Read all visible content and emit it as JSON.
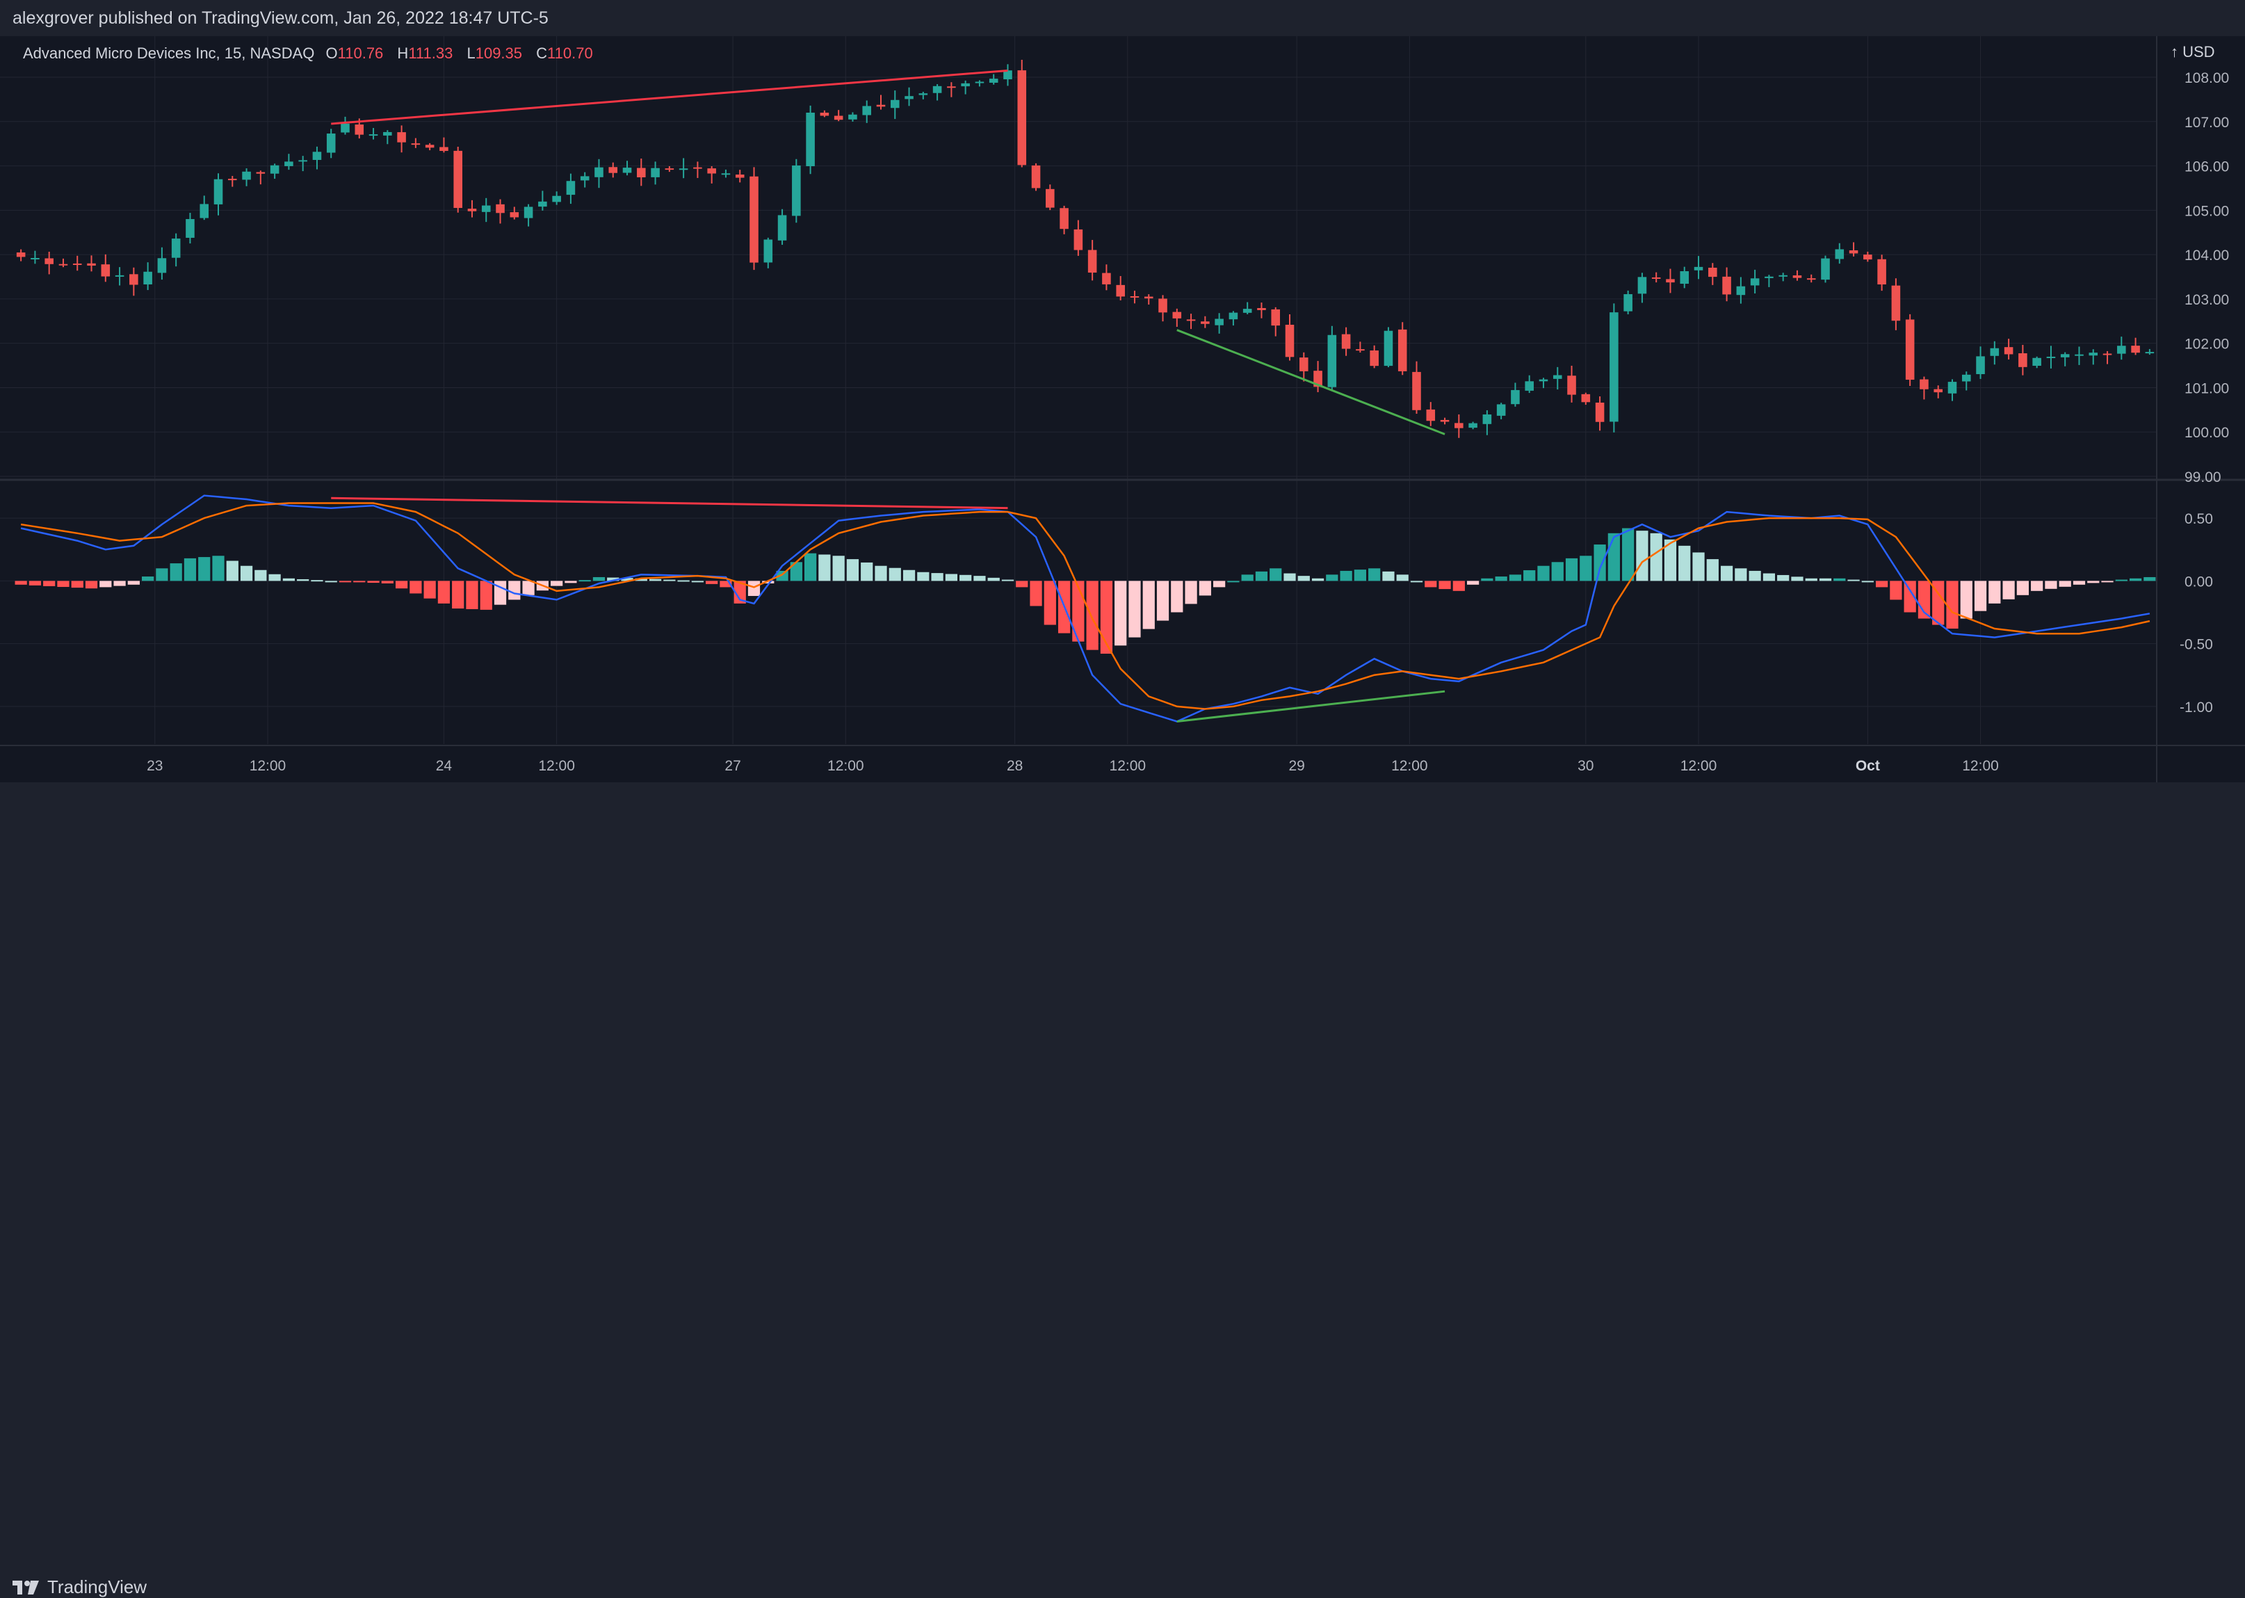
{
  "header": {
    "publisher": "alexgrover published on TradingView.com, Jan 26, 2022 18:47 UTC-5"
  },
  "symbol": {
    "name": "Advanced Micro Devices Inc, 15, NASDAQ",
    "open_label": "O",
    "open": "110.76",
    "high_label": "H",
    "high": "111.33",
    "low_label": "L",
    "low": "109.35",
    "close_label": "C",
    "close": "110.70",
    "currency": "USD"
  },
  "footer": {
    "brand": "TradingView"
  },
  "colors": {
    "background": "#131722",
    "grid": "#232632",
    "up": "#26a69a",
    "down": "#ef5350",
    "hist_up_strong": "#26a69a",
    "hist_up_weak": "#b2dfdb",
    "hist_down_strong": "#ff5252",
    "hist_down_weak": "#ffcdd2",
    "macd_line": "#2962ff",
    "signal_line": "#ff6d00",
    "bear_divergence": "#f23645",
    "bull_divergence": "#4caf50"
  },
  "chart_data": [
    {
      "type": "candlestick",
      "title": "Advanced Micro Devices Inc, 15, NASDAQ",
      "ylim": [
        99.0,
        108.8
      ],
      "y_ticks": [
        "108.00",
        "107.00",
        "106.00",
        "105.00",
        "104.00",
        "103.00",
        "102.00",
        "101.00",
        "100.00",
        "99.00"
      ],
      "x_ticks": [
        "23",
        "12:00",
        "24",
        "12:00",
        "27",
        "12:00",
        "28",
        "12:00",
        "29",
        "12:00",
        "30",
        "12:00",
        "Oct",
        "12:00"
      ],
      "x_tick_positions": [
        9.5,
        17.5,
        30,
        38,
        50.5,
        58.5,
        70.5,
        78.5,
        90.5,
        98.5,
        111,
        119,
        131,
        139
      ],
      "total_bars": 152,
      "key_points": [
        {
          "bar": 0,
          "close": 103.95
        },
        {
          "bar": 5,
          "close": 103.75
        },
        {
          "bar": 8,
          "close": 103.3
        },
        {
          "bar": 11,
          "close": 104.3
        },
        {
          "bar": 14,
          "close": 105.7
        },
        {
          "bar": 17,
          "close": 105.9
        },
        {
          "bar": 20,
          "close": 106.2
        },
        {
          "bar": 23,
          "close": 106.85
        },
        {
          "bar": 27,
          "close": 106.6
        },
        {
          "bar": 30,
          "close": 106.3
        },
        {
          "bar": 31,
          "close": 105.1
        },
        {
          "bar": 35,
          "close": 104.9
        },
        {
          "bar": 38,
          "close": 105.4
        },
        {
          "bar": 41,
          "close": 106.0
        },
        {
          "bar": 44,
          "close": 105.8
        },
        {
          "bar": 47,
          "close": 106.0
        },
        {
          "bar": 51,
          "close": 105.7
        },
        {
          "bar": 52,
          "close": 103.9
        },
        {
          "bar": 54,
          "close": 104.9
        },
        {
          "bar": 56,
          "close": 107.3
        },
        {
          "bar": 58,
          "close": 107.0
        },
        {
          "bar": 62,
          "close": 107.5
        },
        {
          "bar": 66,
          "close": 107.8
        },
        {
          "bar": 70,
          "close": 108.1
        },
        {
          "bar": 71,
          "close": 106.1
        },
        {
          "bar": 73,
          "close": 105.0
        },
        {
          "bar": 76,
          "close": 103.5
        },
        {
          "bar": 78,
          "close": 103.0
        },
        {
          "bar": 80,
          "close": 103.0
        },
        {
          "bar": 82,
          "close": 102.6
        },
        {
          "bar": 84,
          "close": 102.5
        },
        {
          "bar": 88,
          "close": 102.8
        },
        {
          "bar": 90,
          "close": 101.8
        },
        {
          "bar": 92,
          "close": 101.0
        },
        {
          "bar": 93,
          "close": 102.2
        },
        {
          "bar": 96,
          "close": 101.5
        },
        {
          "bar": 97,
          "close": 102.2
        },
        {
          "bar": 99,
          "close": 100.5
        },
        {
          "bar": 102,
          "close": 100.0
        },
        {
          "bar": 104,
          "close": 100.5
        },
        {
          "bar": 107,
          "close": 101.1
        },
        {
          "bar": 109,
          "close": 101.2
        },
        {
          "bar": 112,
          "close": 100.3
        },
        {
          "bar": 113,
          "close": 102.8
        },
        {
          "bar": 115,
          "close": 103.6
        },
        {
          "bar": 117,
          "close": 103.3
        },
        {
          "bar": 119,
          "close": 103.8
        },
        {
          "bar": 121,
          "close": 103.2
        },
        {
          "bar": 124,
          "close": 103.6
        },
        {
          "bar": 127,
          "close": 103.5
        },
        {
          "bar": 129,
          "close": 104.2
        },
        {
          "bar": 131,
          "close": 104.0
        },
        {
          "bar": 133,
          "close": 102.6
        },
        {
          "bar": 134,
          "close": 101.2
        },
        {
          "bar": 136,
          "close": 100.9
        },
        {
          "bar": 138,
          "close": 101.4
        },
        {
          "bar": 140,
          "close": 101.9
        },
        {
          "bar": 142,
          "close": 101.5
        },
        {
          "bar": 146,
          "close": 101.8
        },
        {
          "bar": 151,
          "close": 101.9
        }
      ],
      "bear_divergence": {
        "from": {
          "bar": 22,
          "price": 106.95
        },
        "to": {
          "bar": 70,
          "price": 108.15
        }
      },
      "bull_divergence": {
        "from": {
          "bar": 82,
          "price": 102.3
        },
        "to": {
          "bar": 101,
          "price": 99.95
        }
      }
    },
    {
      "type": "macd",
      "ylim": [
        -1.3,
        0.75
      ],
      "y_ticks": [
        "0.50",
        "0.00",
        "-0.50",
        "-1.00"
      ],
      "y_tick_values": [
        0.5,
        0.0,
        -0.5,
        -1.0
      ],
      "series": [
        {
          "name": "MACD",
          "color": "#2962ff",
          "points": [
            [
              0,
              0.42
            ],
            [
              4,
              0.32
            ],
            [
              6,
              0.25
            ],
            [
              8,
              0.28
            ],
            [
              10,
              0.45
            ],
            [
              13,
              0.68
            ],
            [
              16,
              0.65
            ],
            [
              19,
              0.6
            ],
            [
              22,
              0.58
            ],
            [
              25,
              0.6
            ],
            [
              28,
              0.48
            ],
            [
              31,
              0.1
            ],
            [
              35,
              -0.1
            ],
            [
              38,
              -0.15
            ],
            [
              41,
              -0.02
            ],
            [
              44,
              0.05
            ],
            [
              48,
              0.04
            ],
            [
              50,
              0.03
            ],
            [
              51,
              -0.15
            ],
            [
              52,
              -0.18
            ],
            [
              54,
              0.12
            ],
            [
              56,
              0.3
            ],
            [
              58,
              0.48
            ],
            [
              61,
              0.52
            ],
            [
              64,
              0.55
            ],
            [
              68,
              0.57
            ],
            [
              70,
              0.55
            ],
            [
              72,
              0.35
            ],
            [
              74,
              -0.2
            ],
            [
              76,
              -0.75
            ],
            [
              78,
              -0.98
            ],
            [
              80,
              -1.05
            ],
            [
              82,
              -1.12
            ],
            [
              84,
              -1.02
            ],
            [
              86,
              -0.98
            ],
            [
              88,
              -0.92
            ],
            [
              90,
              -0.85
            ],
            [
              92,
              -0.9
            ],
            [
              94,
              -0.75
            ],
            [
              96,
              -0.62
            ],
            [
              98,
              -0.72
            ],
            [
              100,
              -0.78
            ],
            [
              102,
              -0.8
            ],
            [
              105,
              -0.65
            ],
            [
              108,
              -0.55
            ],
            [
              110,
              -0.4
            ],
            [
              111,
              -0.35
            ],
            [
              112,
              0.1
            ],
            [
              113,
              0.35
            ],
            [
              115,
              0.45
            ],
            [
              117,
              0.35
            ],
            [
              119,
              0.4
            ],
            [
              121,
              0.55
            ],
            [
              124,
              0.52
            ],
            [
              127,
              0.5
            ],
            [
              129,
              0.52
            ],
            [
              131,
              0.45
            ],
            [
              133,
              0.1
            ],
            [
              135,
              -0.25
            ],
            [
              137,
              -0.42
            ],
            [
              140,
              -0.45
            ],
            [
              143,
              -0.4
            ],
            [
              146,
              -0.35
            ],
            [
              149,
              -0.3
            ],
            [
              151,
              -0.26
            ]
          ]
        },
        {
          "name": "Signal",
          "color": "#ff6d00",
          "points": [
            [
              0,
              0.45
            ],
            [
              4,
              0.38
            ],
            [
              7,
              0.32
            ],
            [
              10,
              0.35
            ],
            [
              13,
              0.5
            ],
            [
              16,
              0.6
            ],
            [
              19,
              0.62
            ],
            [
              22,
              0.62
            ],
            [
              25,
              0.62
            ],
            [
              28,
              0.55
            ],
            [
              31,
              0.38
            ],
            [
              35,
              0.05
            ],
            [
              38,
              -0.08
            ],
            [
              41,
              -0.05
            ],
            [
              44,
              0.02
            ],
            [
              48,
              0.04
            ],
            [
              50,
              0.02
            ],
            [
              52,
              -0.05
            ],
            [
              54,
              0.05
            ],
            [
              56,
              0.25
            ],
            [
              58,
              0.38
            ],
            [
              61,
              0.47
            ],
            [
              64,
              0.52
            ],
            [
              68,
              0.55
            ],
            [
              70,
              0.55
            ],
            [
              72,
              0.5
            ],
            [
              74,
              0.2
            ],
            [
              76,
              -0.3
            ],
            [
              78,
              -0.7
            ],
            [
              80,
              -0.92
            ],
            [
              82,
              -1.0
            ],
            [
              84,
              -1.02
            ],
            [
              86,
              -1.0
            ],
            [
              88,
              -0.95
            ],
            [
              90,
              -0.92
            ],
            [
              92,
              -0.88
            ],
            [
              94,
              -0.82
            ],
            [
              96,
              -0.75
            ],
            [
              98,
              -0.72
            ],
            [
              100,
              -0.75
            ],
            [
              102,
              -0.78
            ],
            [
              105,
              -0.72
            ],
            [
              108,
              -0.65
            ],
            [
              110,
              -0.55
            ],
            [
              112,
              -0.45
            ],
            [
              113,
              -0.2
            ],
            [
              115,
              0.15
            ],
            [
              117,
              0.3
            ],
            [
              119,
              0.42
            ],
            [
              121,
              0.47
            ],
            [
              124,
              0.5
            ],
            [
              127,
              0.5
            ],
            [
              129,
              0.5
            ],
            [
              131,
              0.49
            ],
            [
              133,
              0.35
            ],
            [
              135,
              0.05
            ],
            [
              137,
              -0.25
            ],
            [
              140,
              -0.38
            ],
            [
              143,
              -0.42
            ],
            [
              146,
              -0.42
            ],
            [
              149,
              -0.37
            ],
            [
              151,
              -0.32
            ]
          ]
        }
      ],
      "histogram_keypoints": [
        [
          0,
          -0.03
        ],
        [
          5,
          -0.06
        ],
        [
          8,
          -0.03
        ],
        [
          10,
          0.1
        ],
        [
          12,
          0.18
        ],
        [
          14,
          0.2
        ],
        [
          16,
          0.12
        ],
        [
          19,
          0.02
        ],
        [
          22,
          0.0
        ],
        [
          26,
          -0.02
        ],
        [
          28,
          -0.1
        ],
        [
          31,
          -0.22
        ],
        [
          33,
          -0.23
        ],
        [
          35,
          -0.15
        ],
        [
          38,
          -0.04
        ],
        [
          41,
          0.03
        ],
        [
          44,
          0.02
        ],
        [
          48,
          0.0
        ],
        [
          50,
          -0.05
        ],
        [
          51,
          -0.18
        ],
        [
          52,
          -0.12
        ],
        [
          54,
          0.08
        ],
        [
          56,
          0.22
        ],
        [
          58,
          0.2
        ],
        [
          61,
          0.12
        ],
        [
          64,
          0.07
        ],
        [
          68,
          0.04
        ],
        [
          70,
          0.01
        ],
        [
          71,
          -0.05
        ],
        [
          73,
          -0.35
        ],
        [
          76,
          -0.55
        ],
        [
          77,
          -0.58
        ],
        [
          79,
          -0.45
        ],
        [
          82,
          -0.25
        ],
        [
          85,
          -0.05
        ],
        [
          87,
          0.05
        ],
        [
          89,
          0.1
        ],
        [
          90,
          0.06
        ],
        [
          92,
          0.02
        ],
        [
          94,
          0.08
        ],
        [
          96,
          0.1
        ],
        [
          98,
          0.05
        ],
        [
          100,
          -0.05
        ],
        [
          102,
          -0.08
        ],
        [
          104,
          0.02
        ],
        [
          106,
          0.05
        ],
        [
          108,
          0.12
        ],
        [
          110,
          0.18
        ],
        [
          111,
          0.2
        ],
        [
          113,
          0.38
        ],
        [
          114,
          0.42
        ],
        [
          116,
          0.38
        ],
        [
          118,
          0.28
        ],
        [
          121,
          0.12
        ],
        [
          124,
          0.06
        ],
        [
          127,
          0.02
        ],
        [
          129,
          0.02
        ],
        [
          131,
          0.0
        ],
        [
          132,
          -0.05
        ],
        [
          134,
          -0.25
        ],
        [
          136,
          -0.35
        ],
        [
          137,
          -0.38
        ],
        [
          138,
          -0.3
        ],
        [
          140,
          -0.18
        ],
        [
          143,
          -0.08
        ],
        [
          146,
          -0.03
        ],
        [
          149,
          0.01
        ],
        [
          151,
          0.03
        ]
      ],
      "bear_divergence": {
        "from": {
          "bar": 22,
          "value": 0.66
        },
        "to": {
          "bar": 70,
          "value": 0.58
        }
      },
      "bull_divergence": {
        "from": {
          "bar": 82,
          "value": -1.12
        },
        "to": {
          "bar": 101,
          "value": -0.88
        }
      }
    }
  ]
}
